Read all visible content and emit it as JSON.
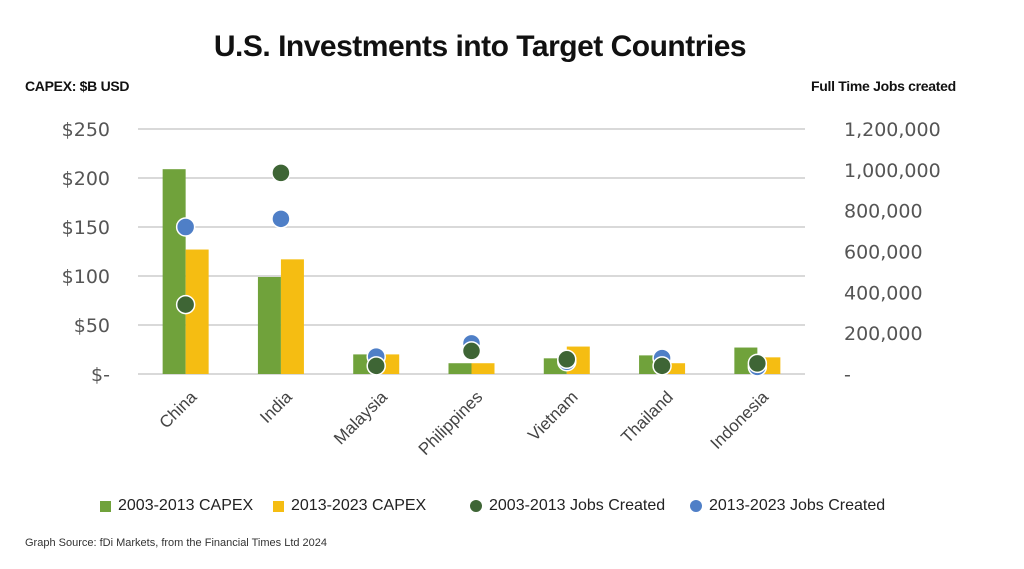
{
  "chart_data": {
    "type": "bar",
    "title": "U.S. Investments into Target Countries",
    "ylabel": "CAPEX: $B USD",
    "y2label": "Full Time Jobs created",
    "xlabel": "",
    "categories": [
      "China",
      "India",
      "Malaysia",
      "Philippines",
      "Vietnam",
      "Thailand",
      "Indonesia"
    ],
    "ylim": [
      0,
      250
    ],
    "y2lim": [
      0,
      1200000
    ],
    "yticks": [
      0,
      50,
      100,
      150,
      200,
      250
    ],
    "ytick_labels": [
      "$-",
      "$50",
      "$100",
      "$150",
      "$200",
      "$250"
    ],
    "y2ticks": [
      0,
      200000,
      400000,
      600000,
      800000,
      1000000,
      1200000
    ],
    "y2tick_labels": [
      "-",
      "200,000",
      "400,000",
      "600,000",
      "800,000",
      "1,000,000",
      "1,200,000"
    ],
    "grid": true,
    "legend_position": "bottom",
    "series": [
      {
        "name": "2003-2013 CAPEX",
        "type": "bar",
        "axis": "left",
        "color": "#70a23b",
        "values": [
          209,
          99,
          20,
          11,
          16,
          19,
          27
        ]
      },
      {
        "name": "2013-2023 CAPEX",
        "type": "bar",
        "axis": "left",
        "color": "#f5bd12",
        "values": [
          127,
          117,
          20,
          11,
          28,
          11,
          17
        ]
      },
      {
        "name": "2003-2013 Jobs Created",
        "type": "scatter",
        "axis": "right",
        "color": "#3e6535",
        "values": [
          340000,
          985000,
          40000,
          113000,
          72000,
          40000,
          52000
        ]
      },
      {
        "name": "2013-2023 Jobs Created",
        "type": "scatter",
        "axis": "right",
        "color": "#4f7fc7",
        "values": [
          720000,
          760000,
          85000,
          150000,
          60000,
          78000,
          35000
        ]
      }
    ]
  },
  "source": "Graph Source: fDi Markets, from the Financial Times Ltd 2024"
}
